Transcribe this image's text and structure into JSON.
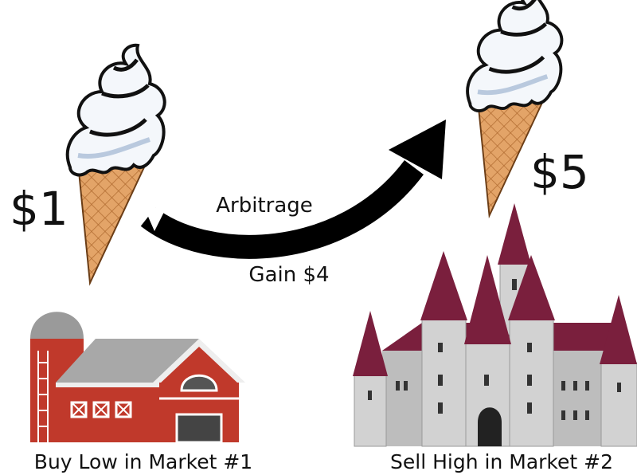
{
  "left": {
    "price": "$1",
    "caption": "Buy Low in Market #1"
  },
  "right": {
    "price": "$5",
    "caption": "Sell High in Market #2"
  },
  "arrow": {
    "label": "Arbitrage",
    "sublabel": "Gain $4"
  }
}
